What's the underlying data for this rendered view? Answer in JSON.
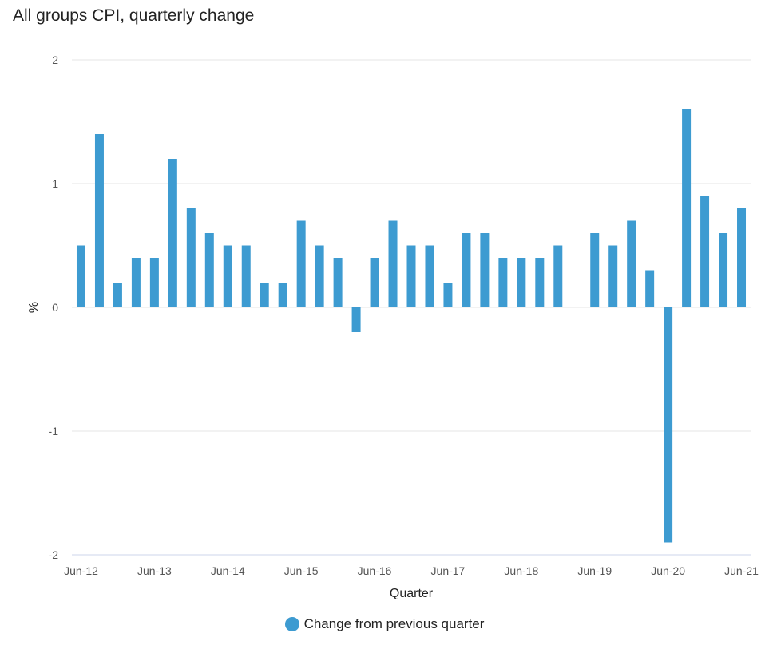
{
  "chart_data": {
    "type": "bar",
    "title": "All groups CPI, quarterly change",
    "xlabel": "Quarter",
    "ylabel": "%",
    "ylim": [
      -2,
      2
    ],
    "yticks": [
      2,
      1,
      0,
      -1,
      -2
    ],
    "ytick_labels": [
      "2",
      "1",
      "0",
      "-1",
      "-2"
    ],
    "grid": true,
    "legend_position": "bottom-center",
    "color": "#3d9bd1",
    "categories": [
      "Jun-12",
      "Sep-12",
      "Dec-12",
      "Mar-13",
      "Jun-13",
      "Sep-13",
      "Dec-13",
      "Mar-14",
      "Jun-14",
      "Sep-14",
      "Dec-14",
      "Mar-15",
      "Jun-15",
      "Sep-15",
      "Dec-15",
      "Mar-16",
      "Jun-16",
      "Sep-16",
      "Dec-16",
      "Mar-17",
      "Jun-17",
      "Sep-17",
      "Dec-17",
      "Mar-18",
      "Jun-18",
      "Sep-18",
      "Dec-18",
      "Mar-19",
      "Jun-19",
      "Sep-19",
      "Dec-19",
      "Mar-20",
      "Jun-20",
      "Sep-20",
      "Dec-20",
      "Mar-21",
      "Jun-21"
    ],
    "xtick_labels": [
      "Jun-12",
      "Jun-13",
      "Jun-14",
      "Jun-15",
      "Jun-16",
      "Jun-17",
      "Jun-18",
      "Jun-19",
      "Jun-20",
      "Jun-21"
    ],
    "series": [
      {
        "name": "Change from previous quarter",
        "values": [
          0.5,
          1.4,
          0.2,
          0.4,
          0.4,
          1.2,
          0.8,
          0.6,
          0.5,
          0.5,
          0.2,
          0.2,
          0.7,
          0.5,
          0.4,
          -0.2,
          0.4,
          0.7,
          0.5,
          0.5,
          0.2,
          0.6,
          0.6,
          0.4,
          0.4,
          0.4,
          0.5,
          0.0,
          0.6,
          0.5,
          0.7,
          0.3,
          -1.9,
          1.6,
          0.9,
          0.6,
          0.8
        ]
      }
    ]
  }
}
